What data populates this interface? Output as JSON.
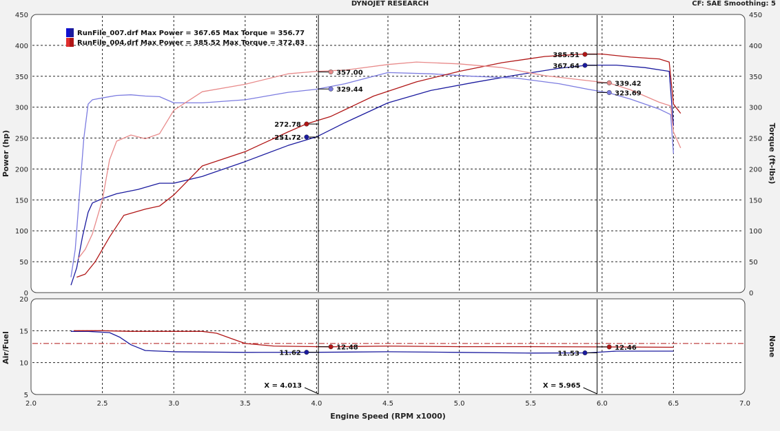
{
  "header": {
    "title": "DYNOJET RESEARCH",
    "cf_smoothing": "CF: SAE  Smoothing: 5"
  },
  "colors": {
    "run007_power": "#1a1a9e",
    "run007_torque": "#7b7be0",
    "run004_power": "#b01515",
    "run004_torque": "#e88a8a",
    "afr_reference": "#b01515",
    "cursor": "#000000"
  },
  "chart_data": [
    {
      "type": "line",
      "panel": "top",
      "ylabel_left": "Power (hp)",
      "ylabel_right": "Torque (ft-lbs)",
      "xlim": [
        2.0,
        7.0
      ],
      "ylim": [
        0,
        450
      ],
      "y_ticks": [
        0,
        50,
        100,
        150,
        200,
        250,
        300,
        350,
        400,
        450
      ],
      "grid": true,
      "legend": [
        {
          "text": "RunFile_007.drf Max Power = 367.65 Max Torque = 356.77",
          "color": "#1a1a9e"
        },
        {
          "text": "RunFile_004.drf Max Power = 385.52 Max Torque = 372.83",
          "color": "#b01515"
        }
      ],
      "series": [
        {
          "key": "run007_power",
          "color": "#1a1a9e",
          "x": [
            2.28,
            2.32,
            2.36,
            2.4,
            2.43,
            2.5,
            2.6,
            2.75,
            2.9,
            3.0,
            3.2,
            3.5,
            3.8,
            4.0,
            4.2,
            4.5,
            4.8,
            5.1,
            5.4,
            5.7,
            5.9,
            6.1,
            6.3,
            6.47,
            6.5
          ],
          "y": [
            12,
            40,
            90,
            130,
            145,
            152,
            160,
            167,
            177,
            177,
            188,
            212,
            238,
            252,
            275,
            307,
            327,
            340,
            352,
            363,
            368,
            368,
            364,
            358,
            270
          ]
        },
        {
          "key": "run007_torque",
          "color": "#7b7be0",
          "x": [
            2.28,
            2.31,
            2.34,
            2.37,
            2.4,
            2.43,
            2.5,
            2.6,
            2.7,
            2.8,
            2.9,
            3.0,
            3.2,
            3.5,
            3.8,
            4.0,
            4.2,
            4.5,
            4.8,
            5.1,
            5.4,
            5.7,
            5.9,
            6.05,
            6.2,
            6.4,
            6.48,
            6.5
          ],
          "y": [
            25,
            70,
            160,
            250,
            305,
            312,
            315,
            319,
            320,
            318,
            317,
            307,
            307,
            312,
            324,
            329,
            338,
            356,
            354,
            350,
            347,
            338,
            329,
            323,
            313,
            297,
            288,
            225
          ]
        },
        {
          "key": "run004_power",
          "color": "#b01515",
          "x": [
            2.32,
            2.38,
            2.45,
            2.55,
            2.65,
            2.8,
            2.9,
            3.0,
            3.2,
            3.5,
            3.8,
            3.93,
            4.1,
            4.4,
            4.7,
            5.0,
            5.3,
            5.6,
            5.8,
            5.88,
            6.0,
            6.2,
            6.4,
            6.47,
            6.5,
            6.55
          ],
          "y": [
            25,
            30,
            50,
            90,
            125,
            135,
            140,
            158,
            205,
            228,
            260,
            273,
            285,
            318,
            341,
            358,
            372,
            382,
            385,
            386,
            386,
            381,
            378,
            373,
            305,
            290
          ]
        },
        {
          "key": "run004_torque",
          "color": "#e88a8a",
          "x": [
            2.33,
            2.38,
            2.43,
            2.5,
            2.55,
            2.6,
            2.7,
            2.8,
            2.9,
            3.0,
            3.2,
            3.5,
            3.8,
            4.0,
            4.2,
            4.5,
            4.7,
            5.0,
            5.3,
            5.6,
            5.9,
            6.05,
            6.2,
            6.4,
            6.48,
            6.5,
            6.55
          ],
          "y": [
            55,
            70,
            95,
            150,
            215,
            245,
            255,
            249,
            257,
            295,
            325,
            337,
            354,
            358,
            360,
            369,
            373,
            370,
            364,
            351,
            343,
            339,
            328,
            308,
            302,
            260,
            234
          ]
        }
      ],
      "annotations": [
        {
          "text": "357.00",
          "x": 4.1,
          "y": 357.0,
          "color": "#e88a8a",
          "side": "right"
        },
        {
          "text": "329.44",
          "x": 4.1,
          "y": 329.44,
          "color": "#7b7be0",
          "side": "right"
        },
        {
          "text": "272.78",
          "x": 3.93,
          "y": 272.78,
          "color": "#b01515",
          "side": "left"
        },
        {
          "text": "251.72",
          "x": 3.93,
          "y": 251.72,
          "color": "#1a1a9e",
          "side": "left"
        },
        {
          "text": "385.51",
          "x": 5.88,
          "y": 385.51,
          "color": "#b01515",
          "side": "left"
        },
        {
          "text": "367.64",
          "x": 5.88,
          "y": 367.64,
          "color": "#1a1a9e",
          "side": "left"
        },
        {
          "text": "339.42",
          "x": 6.05,
          "y": 339.42,
          "color": "#e88a8a",
          "side": "right"
        },
        {
          "text": "323.69",
          "x": 6.05,
          "y": 323.69,
          "color": "#7b7be0",
          "side": "right"
        }
      ]
    },
    {
      "type": "line",
      "panel": "bottom",
      "ylabel_left": "Air/Fuel",
      "ylabel_right": "None",
      "xlabel": "Engine Speed (RPM x1000)",
      "xlim": [
        2.0,
        7.0
      ],
      "ylim": [
        5,
        20
      ],
      "y_ticks": [
        5,
        10,
        15,
        20
      ],
      "x_ticks": [
        "2.0",
        "2.5",
        "3.0",
        "3.5",
        "4.0",
        "4.5",
        "5.0",
        "5.5",
        "6.0",
        "6.5",
        "7.0"
      ],
      "grid": true,
      "reference_line": 13.0,
      "series": [
        {
          "key": "run007_afr",
          "color": "#1a1a9e",
          "x": [
            2.28,
            2.4,
            2.55,
            2.62,
            2.7,
            2.8,
            3.0,
            3.5,
            4.0,
            4.5,
            5.0,
            5.5,
            5.9,
            6.1,
            6.5
          ],
          "y": [
            14.9,
            14.9,
            14.7,
            14.0,
            12.8,
            11.9,
            11.7,
            11.6,
            11.62,
            11.7,
            11.6,
            11.5,
            11.53,
            11.8,
            11.8
          ]
        },
        {
          "key": "run004_afr",
          "color": "#b01515",
          "x": [
            2.3,
            2.5,
            2.7,
            3.0,
            3.2,
            3.3,
            3.4,
            3.5,
            3.7,
            4.0,
            4.1,
            4.5,
            5.0,
            5.5,
            6.05,
            6.5
          ],
          "y": [
            15.0,
            15.0,
            14.9,
            14.9,
            14.9,
            14.6,
            13.8,
            13.0,
            12.6,
            12.5,
            12.48,
            12.6,
            12.5,
            12.5,
            12.46,
            12.4
          ]
        }
      ],
      "annotations": [
        {
          "text": "11.62",
          "x": 3.93,
          "y": 11.62,
          "color": "#1a1a9e",
          "side": "left"
        },
        {
          "text": "12.48",
          "x": 4.1,
          "y": 12.48,
          "color": "#b01515",
          "side": "right"
        },
        {
          "text": "11.53",
          "x": 5.88,
          "y": 11.53,
          "color": "#1a1a9e",
          "side": "left"
        },
        {
          "text": "12.46",
          "x": 6.05,
          "y": 12.46,
          "color": "#b01515",
          "side": "right"
        }
      ],
      "cursors": [
        {
          "x": 4.013,
          "label": "X = 4.013"
        },
        {
          "x": 5.965,
          "label": "X = 5.965"
        }
      ]
    }
  ]
}
